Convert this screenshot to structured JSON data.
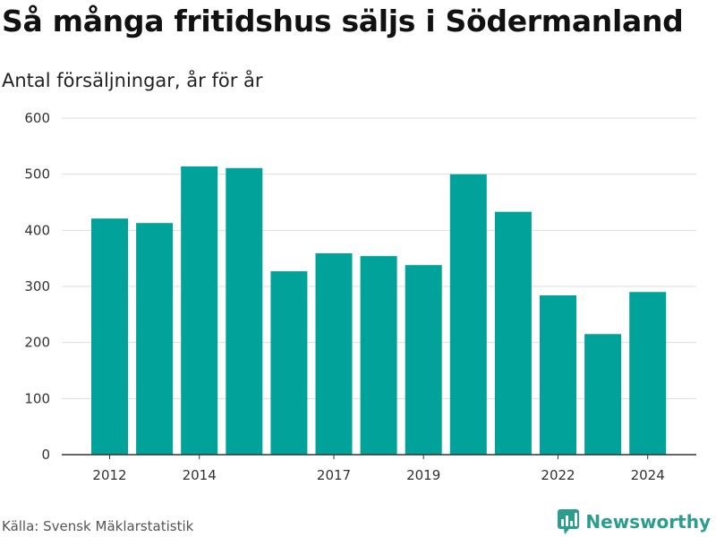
{
  "header": {
    "title": "Så många fritidshus säljs i Södermanland",
    "subtitle": "Antal försäljningar, år för år"
  },
  "footer": {
    "source": "Källa: Svensk Mäklarstatistik",
    "brand": "Newsworthy"
  },
  "colors": {
    "bar": "#00a29a",
    "grid": "#dddddd",
    "axis": "#333333",
    "brand": "#2a9d8f"
  },
  "icons": {
    "brand": "bar-chart-speech-bubble-icon"
  },
  "chart_data": {
    "type": "bar",
    "categories": [
      "2012",
      "2013",
      "2014",
      "2015",
      "2016",
      "2017",
      "2018",
      "2019",
      "2020",
      "2021",
      "2022",
      "2023",
      "2024"
    ],
    "values": [
      421,
      413,
      514,
      511,
      327,
      359,
      354,
      338,
      500,
      433,
      284,
      215,
      290
    ],
    "xtick_labels": [
      "2012",
      "2014",
      "2017",
      "2019",
      "2022",
      "2024"
    ],
    "ylim": [
      0,
      600
    ],
    "yticks": [
      0,
      100,
      200,
      300,
      400,
      500,
      600
    ],
    "grid": true,
    "legend": "none"
  }
}
